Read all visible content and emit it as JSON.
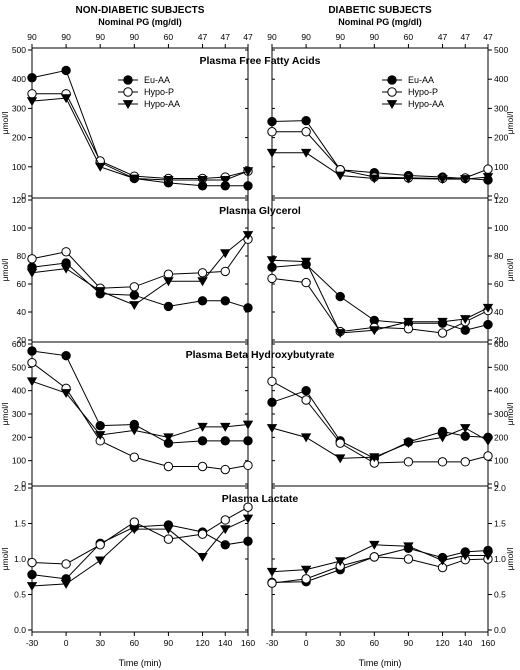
{
  "figure": {
    "groups": [
      {
        "id": "nd",
        "title": "NON-DIABETIC SUBJECTS",
        "subtitle": "Nominal PG (mg/dl)"
      },
      {
        "id": "d",
        "title": "DIABETIC SUBJECTS",
        "subtitle": "Nominal PG (mg/dl)"
      }
    ],
    "nominal_pg_ticks": [
      "90",
      "90",
      "90",
      "90",
      "60",
      "47",
      "47",
      "47"
    ],
    "xlabel": "Time (min)"
  },
  "chart_data": [
    {
      "type": "line",
      "title": "Plasma Free Fatty Acids",
      "ylabel": "μmol/l",
      "ylim": [
        0,
        500
      ],
      "yticks": [
        0,
        100,
        200,
        300,
        400,
        500
      ],
      "x": [
        -30,
        0,
        30,
        60,
        90,
        120,
        140,
        160
      ],
      "legend": [
        {
          "name": "Eu-AA",
          "marker": "filled-circle"
        },
        {
          "name": "Hypo-P",
          "marker": "open-circle"
        },
        {
          "name": "Hypo-AA",
          "marker": "filled-triangle-down"
        }
      ],
      "panels": [
        {
          "group": "nd",
          "series": [
            {
              "name": "Eu-AA",
              "values": [
                405,
                430,
                115,
                60,
                45,
                35,
                35,
                35
              ]
            },
            {
              "name": "Hypo-P",
              "values": [
                350,
                350,
                120,
                68,
                60,
                60,
                65,
                85
              ]
            },
            {
              "name": "Hypo-AA",
              "values": [
                325,
                335,
                100,
                60,
                55,
                55,
                55,
                85
              ]
            }
          ]
        },
        {
          "group": "d",
          "series": [
            {
              "name": "Eu-AA",
              "values": [
                255,
                258,
                90,
                80,
                70,
                65,
                60,
                55
              ]
            },
            {
              "name": "Hypo-P",
              "values": [
                220,
                220,
                90,
                65,
                62,
                60,
                62,
                92
              ]
            },
            {
              "name": "Hypo-AA",
              "values": [
                148,
                148,
                70,
                60,
                60,
                58,
                58,
                65
              ]
            }
          ]
        }
      ]
    },
    {
      "type": "line",
      "title": "Plasma Glycerol",
      "ylabel": "μmol/l",
      "ylim": [
        20,
        120
      ],
      "yticks": [
        20,
        40,
        60,
        80,
        100,
        120
      ],
      "x": [
        -30,
        0,
        30,
        60,
        90,
        120,
        140,
        160
      ],
      "panels": [
        {
          "group": "nd",
          "series": [
            {
              "name": "Eu-AA",
              "values": [
                72,
                75,
                53,
                52,
                44,
                48,
                48,
                43
              ]
            },
            {
              "name": "Hypo-P",
              "values": [
                78,
                83,
                57,
                58,
                67,
                68,
                69,
                92
              ]
            },
            {
              "name": "Hypo-AA",
              "values": [
                68,
                71,
                55,
                45,
                62,
                62,
                82,
                95
              ]
            }
          ]
        },
        {
          "group": "d",
          "series": [
            {
              "name": "Eu-AA",
              "values": [
                72,
                74,
                51,
                34,
                32,
                32,
                27,
                31
              ]
            },
            {
              "name": "Hypo-P",
              "values": [
                64,
                61,
                26,
                29,
                28,
                25,
                33,
                41
              ]
            },
            {
              "name": "Hypo-AA",
              "values": [
                77,
                76,
                25,
                27,
                33,
                33,
                35,
                43
              ]
            }
          ]
        }
      ]
    },
    {
      "type": "line",
      "title": "Plasma Beta Hydroxybutyrate",
      "ylabel": "μmol/l",
      "ylim": [
        0,
        600
      ],
      "yticks": [
        0,
        100,
        200,
        300,
        400,
        500,
        600
      ],
      "x": [
        -30,
        0,
        30,
        60,
        90,
        120,
        140,
        160
      ],
      "panels": [
        {
          "group": "nd",
          "series": [
            {
              "name": "Eu-AA",
              "values": [
                570,
                550,
                250,
                255,
                175,
                185,
                185,
                185
              ]
            },
            {
              "name": "Hypo-P",
              "values": [
                520,
                410,
                185,
                115,
                75,
                75,
                62,
                80
              ]
            },
            {
              "name": "Hypo-AA",
              "values": [
                440,
                390,
                210,
                230,
                200,
                245,
                245,
                255
              ]
            }
          ]
        },
        {
          "group": "d",
          "series": [
            {
              "name": "Eu-AA",
              "values": [
                350,
                400,
                185,
                110,
                180,
                225,
                205,
                200
              ]
            },
            {
              "name": "Hypo-P",
              "values": [
                440,
                360,
                175,
                90,
                95,
                95,
                95,
                120
              ]
            },
            {
              "name": "Hypo-AA",
              "values": [
                240,
                200,
                110,
                115,
                175,
                200,
                240,
                185
              ]
            }
          ]
        }
      ]
    },
    {
      "type": "line",
      "title": "Plasma Lactate",
      "ylabel": "μmol/l",
      "ylim": [
        0.0,
        2.0
      ],
      "yticks": [
        "0.0",
        "0.5",
        "1.0",
        "1.5",
        "2.0"
      ],
      "x": [
        -30,
        0,
        30,
        60,
        90,
        120,
        140,
        160
      ],
      "panels": [
        {
          "group": "nd",
          "series": [
            {
              "name": "Eu-AA",
              "values": [
                0.78,
                0.72,
                1.22,
                1.45,
                1.48,
                1.38,
                1.2,
                1.25
              ]
            },
            {
              "name": "Hypo-P",
              "values": [
                0.95,
                0.93,
                1.2,
                1.52,
                1.28,
                1.35,
                1.55,
                1.73
              ]
            },
            {
              "name": "Hypo-AA",
              "values": [
                0.62,
                0.65,
                0.98,
                1.42,
                1.42,
                1.03,
                1.42,
                1.57
              ]
            }
          ]
        },
        {
          "group": "d",
          "series": [
            {
              "name": "Eu-AA",
              "values": [
                0.67,
                0.68,
                0.85,
                1.03,
                1.15,
                1.02,
                1.1,
                1.12
              ]
            },
            {
              "name": "Hypo-P",
              "values": [
                0.66,
                0.72,
                0.9,
                1.03,
                1.0,
                0.88,
                0.99,
                1.0
              ]
            },
            {
              "name": "Hypo-AA",
              "values": [
                0.82,
                0.85,
                0.97,
                1.2,
                1.18,
                0.98,
                1.05,
                1.05
              ]
            }
          ]
        }
      ]
    }
  ]
}
